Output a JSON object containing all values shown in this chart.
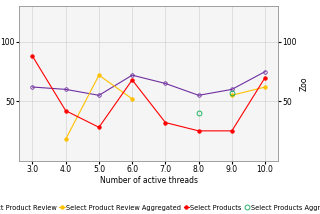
{
  "title": "",
  "xlabel": "Number of active threads",
  "ylabel": "",
  "right_ylabel": "Zoo",
  "x": [
    3,
    4,
    5,
    6,
    7,
    8,
    9,
    10
  ],
  "series": {
    "Select Product Review": {
      "y": [
        62,
        60,
        55,
        72,
        65,
        55,
        60,
        75
      ],
      "color": "#7030a0",
      "marker": "o",
      "linestyle": "-",
      "markersize": 2.5,
      "fillstyle": "none",
      "linewidth": 0.8
    },
    "Select Product Review Aggregated": {
      "y": [
        null,
        18,
        72,
        52,
        null,
        null,
        55,
        62
      ],
      "color": "#ffc000",
      "marker": "o",
      "linestyle": "-",
      "markersize": 2.5,
      "fillstyle": "full",
      "linewidth": 0.8
    },
    "Select Products": {
      "y": [
        88,
        42,
        28,
        68,
        32,
        25,
        25,
        70
      ],
      "color": "#ff0000",
      "marker": "o",
      "linestyle": "-",
      "markersize": 2.5,
      "fillstyle": "full",
      "linewidth": 0.8
    },
    "Select Products Aggregated": {
      "y": [
        null,
        null,
        null,
        null,
        null,
        40,
        57,
        null
      ],
      "color": "#00b050",
      "marker": "o",
      "linestyle": "none",
      "markersize": 3.5,
      "fillstyle": "none",
      "linewidth": 0.8
    }
  },
  "xlim": [
    2.6,
    10.4
  ],
  "ylim": [
    0,
    130
  ],
  "yticks": [
    50,
    100
  ],
  "right_yticks": [
    50,
    100
  ],
  "xtick_labels": [
    "3.0",
    "4.0",
    "5.0",
    "6.0",
    "7.0",
    "8.0",
    "9.0",
    "10.0"
  ],
  "grid": true,
  "background_color": "#ffffff",
  "plot_bg_color": "#f5f5f5",
  "legend_fontsize": 4.8,
  "axis_fontsize": 5.5,
  "legend_items": [
    "Select Product Review",
    "Select Product Review Aggregated",
    "Select Products",
    "Select Products Aggregated"
  ]
}
